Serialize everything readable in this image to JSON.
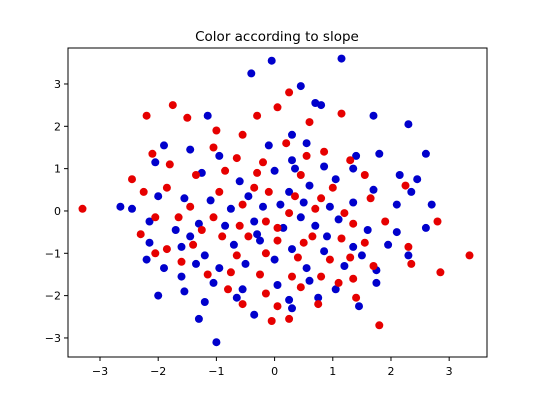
{
  "chart_data": {
    "type": "scatter",
    "title": "Color according to slope",
    "xlabel": "",
    "ylabel": "",
    "xlim": [
      -3.55,
      3.65
    ],
    "ylim": [
      -3.45,
      3.85
    ],
    "xticks": [
      -3,
      -2,
      -1,
      0,
      1,
      2,
      3
    ],
    "yticks": [
      -3,
      -2,
      -1,
      0,
      1,
      2,
      3
    ],
    "grid": false,
    "colors": {
      "blue": "#0000cc",
      "red": "#e60000"
    },
    "series": [
      {
        "color": "blue",
        "points": [
          [
            -0.05,
            3.55
          ],
          [
            1.15,
            3.6
          ],
          [
            -0.4,
            3.25
          ],
          [
            0.45,
            2.95
          ],
          [
            0.7,
            2.55
          ],
          [
            0.8,
            2.5
          ],
          [
            1.7,
            2.25
          ],
          [
            2.3,
            2.05
          ],
          [
            -1.15,
            2.25
          ],
          [
            0.3,
            1.8
          ],
          [
            0.55,
            1.6
          ],
          [
            1.4,
            1.3
          ],
          [
            1.8,
            1.35
          ],
          [
            2.6,
            1.35
          ],
          [
            -1.9,
            1.55
          ],
          [
            -2.05,
            1.15
          ],
          [
            -1.45,
            1.45
          ],
          [
            -0.95,
            1.3
          ],
          [
            -0.1,
            1.55
          ],
          [
            0.3,
            1.2
          ],
          [
            0.85,
            1.05
          ],
          [
            1.35,
            1.0
          ],
          [
            2.15,
            0.85
          ],
          [
            2.45,
            0.75
          ],
          [
            -1.25,
            0.9
          ],
          [
            -0.6,
            0.7
          ],
          [
            0.0,
            0.95
          ],
          [
            0.25,
            0.45
          ],
          [
            0.6,
            0.6
          ],
          [
            1.05,
            0.75
          ],
          [
            1.7,
            0.5
          ],
          [
            2.35,
            0.45
          ],
          [
            -2.65,
            0.1
          ],
          [
            -2.45,
            0.05
          ],
          [
            -2.0,
            0.35
          ],
          [
            -1.55,
            0.3
          ],
          [
            -1.1,
            0.25
          ],
          [
            -0.45,
            0.35
          ],
          [
            -0.2,
            0.1
          ],
          [
            0.1,
            0.15
          ],
          [
            0.5,
            0.2
          ],
          [
            0.95,
            0.1
          ],
          [
            1.35,
            0.2
          ],
          [
            2.1,
            0.15
          ],
          [
            2.7,
            0.15
          ],
          [
            -2.15,
            -0.25
          ],
          [
            -1.7,
            -0.45
          ],
          [
            -1.3,
            -0.3
          ],
          [
            -0.85,
            -0.35
          ],
          [
            -0.35,
            -0.25
          ],
          [
            0.15,
            -0.4
          ],
          [
            0.7,
            -0.35
          ],
          [
            1.1,
            -0.2
          ],
          [
            1.6,
            -0.45
          ],
          [
            2.1,
            -0.5
          ],
          [
            2.6,
            -0.4
          ],
          [
            -2.15,
            -0.75
          ],
          [
            -1.6,
            -0.85
          ],
          [
            -1.2,
            -1.05
          ],
          [
            -0.7,
            -0.8
          ],
          [
            -0.25,
            -0.7
          ],
          [
            0.3,
            -0.9
          ],
          [
            0.85,
            -0.95
          ],
          [
            1.35,
            -0.85
          ],
          [
            1.95,
            -0.8
          ],
          [
            2.3,
            -1.05
          ],
          [
            -2.2,
            -1.15
          ],
          [
            -1.9,
            -1.35
          ],
          [
            -1.35,
            -1.25
          ],
          [
            -0.95,
            -1.35
          ],
          [
            -0.5,
            -1.25
          ],
          [
            0.0,
            -1.15
          ],
          [
            0.55,
            -1.35
          ],
          [
            1.2,
            -1.3
          ],
          [
            1.75,
            -1.4
          ],
          [
            -1.6,
            -1.55
          ],
          [
            -1.05,
            -1.7
          ],
          [
            -0.55,
            -1.85
          ],
          [
            0.05,
            -1.75
          ],
          [
            0.6,
            -1.65
          ],
          [
            1.05,
            -1.85
          ],
          [
            1.75,
            -1.7
          ],
          [
            -2.0,
            -2.0
          ],
          [
            -1.55,
            -1.9
          ],
          [
            -1.2,
            -2.15
          ],
          [
            -0.65,
            -2.05
          ],
          [
            0.25,
            -2.1
          ],
          [
            0.75,
            -2.05
          ],
          [
            -1.3,
            -2.55
          ],
          [
            -0.35,
            -2.45
          ],
          [
            0.3,
            -2.3
          ],
          [
            1.45,
            -2.25
          ],
          [
            -1.0,
            -3.1
          ],
          [
            0.35,
            1.0
          ],
          [
            -0.3,
            -0.55
          ],
          [
            0.45,
            -0.15
          ],
          [
            0.9,
            -0.6
          ],
          [
            -0.75,
            0.05
          ],
          [
            -1.45,
            -0.6
          ],
          [
            1.5,
            -1.05
          ]
        ]
      },
      {
        "color": "red",
        "points": [
          [
            0.25,
            2.8
          ],
          [
            0.05,
            2.45
          ],
          [
            -0.3,
            2.25
          ],
          [
            1.15,
            2.3
          ],
          [
            -2.2,
            2.25
          ],
          [
            -1.75,
            2.5
          ],
          [
            -1.5,
            2.2
          ],
          [
            -1.0,
            1.9
          ],
          [
            -0.55,
            1.8
          ],
          [
            0.6,
            2.1
          ],
          [
            -2.1,
            1.35
          ],
          [
            -1.8,
            1.1
          ],
          [
            -1.05,
            1.5
          ],
          [
            -0.65,
            1.25
          ],
          [
            0.2,
            1.6
          ],
          [
            0.85,
            1.4
          ],
          [
            1.3,
            1.2
          ],
          [
            -2.45,
            0.75
          ],
          [
            -1.35,
            0.85
          ],
          [
            -0.85,
            0.95
          ],
          [
            -0.3,
            0.9
          ],
          [
            0.45,
            0.85
          ],
          [
            1.0,
            0.55
          ],
          [
            1.55,
            0.85
          ],
          [
            -3.3,
            0.05
          ],
          [
            -2.25,
            0.45
          ],
          [
            -1.85,
            0.55
          ],
          [
            -1.45,
            0.1
          ],
          [
            -0.95,
            0.45
          ],
          [
            -0.55,
            0.15
          ],
          [
            -0.1,
            0.45
          ],
          [
            0.35,
            0.35
          ],
          [
            0.8,
            0.3
          ],
          [
            1.2,
            -0.05
          ],
          [
            1.65,
            0.3
          ],
          [
            2.25,
            0.6
          ],
          [
            -2.05,
            -0.15
          ],
          [
            -1.65,
            -0.15
          ],
          [
            -1.05,
            -0.15
          ],
          [
            -0.6,
            -0.35
          ],
          [
            -0.15,
            -0.25
          ],
          [
            0.25,
            -0.05
          ],
          [
            0.65,
            -0.6
          ],
          [
            1.35,
            -0.3
          ],
          [
            1.9,
            -0.25
          ],
          [
            2.8,
            -0.25
          ],
          [
            -2.3,
            -0.55
          ],
          [
            -1.85,
            -0.9
          ],
          [
            -1.4,
            -0.8
          ],
          [
            -0.9,
            -0.6
          ],
          [
            -0.45,
            -0.6
          ],
          [
            0.05,
            -0.7
          ],
          [
            0.5,
            -0.75
          ],
          [
            1.15,
            -0.65
          ],
          [
            1.55,
            -0.75
          ],
          [
            2.3,
            -0.85
          ],
          [
            -2.05,
            -1.0
          ],
          [
            -1.6,
            -1.2
          ],
          [
            -0.65,
            -1.05
          ],
          [
            -0.15,
            -1.0
          ],
          [
            0.4,
            -1.1
          ],
          [
            0.95,
            -1.15
          ],
          [
            1.3,
            -1.1
          ],
          [
            2.35,
            -1.25
          ],
          [
            -1.15,
            -1.5
          ],
          [
            -0.75,
            -1.45
          ],
          [
            -0.25,
            -1.5
          ],
          [
            0.3,
            -1.55
          ],
          [
            0.8,
            -1.55
          ],
          [
            1.35,
            -1.6
          ],
          [
            2.85,
            -1.45
          ],
          [
            3.35,
            -1.05
          ],
          [
            -0.8,
            -1.85
          ],
          [
            -0.15,
            -1.95
          ],
          [
            0.45,
            -1.8
          ],
          [
            1.1,
            -1.7
          ],
          [
            -0.55,
            -2.2
          ],
          [
            0.05,
            -2.25
          ],
          [
            0.75,
            -2.2
          ],
          [
            1.4,
            -2.05
          ],
          [
            -0.05,
            -2.6
          ],
          [
            0.25,
            -2.55
          ],
          [
            1.8,
            -2.7
          ],
          [
            0.55,
            1.3
          ],
          [
            -0.2,
            1.15
          ],
          [
            0.05,
            -0.4
          ],
          [
            -0.35,
            0.55
          ],
          [
            0.7,
            0.05
          ],
          [
            -1.25,
            -0.45
          ],
          [
            1.7,
            -1.3
          ]
        ]
      }
    ]
  }
}
